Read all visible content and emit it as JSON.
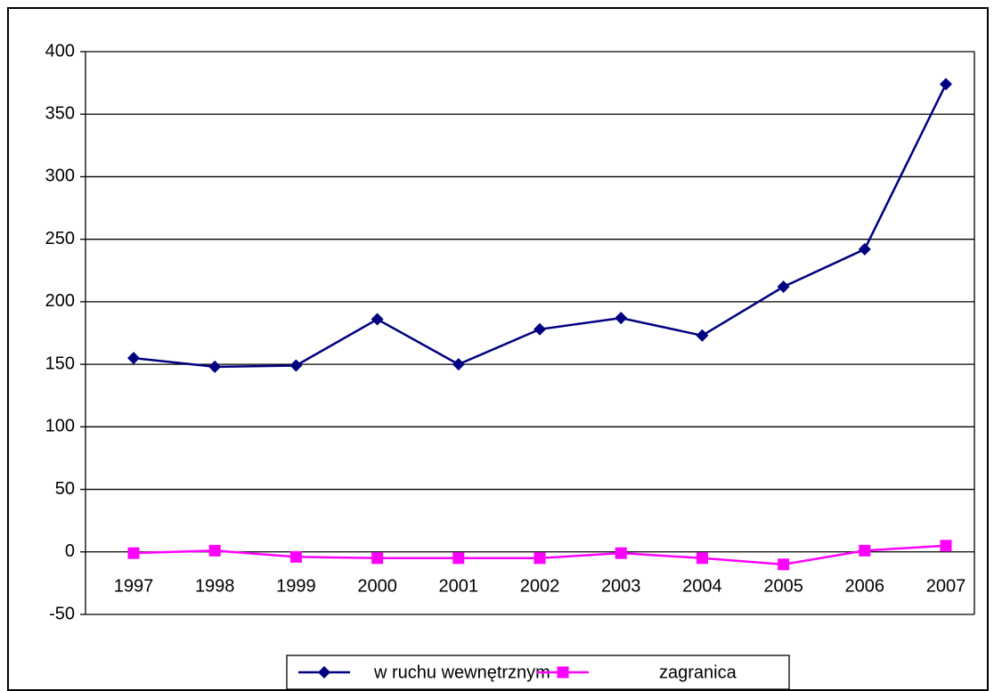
{
  "chart_data": {
    "type": "line",
    "categories": [
      "1997",
      "1998",
      "1999",
      "2000",
      "2001",
      "2002",
      "2003",
      "2004",
      "2005",
      "2006",
      "2007"
    ],
    "series": [
      {
        "name": "w ruchu wewnętrznym",
        "color": "#000080",
        "marker": "diamond",
        "values": [
          155,
          148,
          149,
          186,
          150,
          178,
          187,
          173,
          212,
          242,
          374
        ]
      },
      {
        "name": "zagranica",
        "color": "#ff00ff",
        "marker": "square",
        "values": [
          -1,
          1,
          -4,
          -5,
          -5,
          -5,
          -1,
          -5,
          -10,
          1,
          5
        ]
      }
    ],
    "ylim": [
      -50,
      400
    ],
    "yticks": [
      -50,
      0,
      50,
      100,
      150,
      200,
      250,
      300,
      350,
      400
    ],
    "grid": true
  }
}
